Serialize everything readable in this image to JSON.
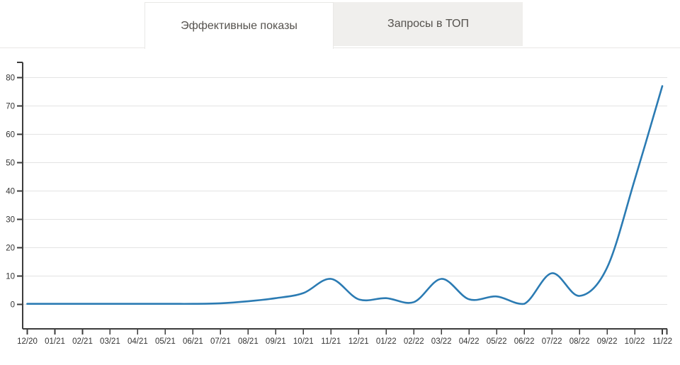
{
  "tabs": [
    {
      "label": "Эффективные показы",
      "active": true
    },
    {
      "label": "Запросы в ТОП",
      "active": false
    }
  ],
  "colors": {
    "line": "#2b7bb3",
    "grid": "#e3e3e3",
    "axis": "#3c3c3c",
    "tick_text": "#333333",
    "tab_inactive_bg": "#f0efed",
    "tab_border": "#e9e8e6",
    "tab_text": "#55524e"
  },
  "chart_data": {
    "type": "line",
    "title": "",
    "xlabel": "",
    "ylabel": "",
    "grid": true,
    "legend": false,
    "ylim": [
      0,
      80
    ],
    "yticks": [
      0,
      10,
      20,
      30,
      40,
      50,
      60,
      70,
      80
    ],
    "x": [
      "12/20",
      "01/21",
      "02/21",
      "03/21",
      "04/21",
      "05/21",
      "06/21",
      "07/21",
      "08/21",
      "09/21",
      "10/21",
      "11/21",
      "12/21",
      "01/22",
      "02/22",
      "03/22",
      "04/22",
      "05/22",
      "06/22",
      "07/22",
      "08/22",
      "09/22",
      "10/22",
      "11/22"
    ],
    "series": [
      {
        "name": "Эффективные показы",
        "values": [
          0.2,
          0.2,
          0.2,
          0.2,
          0.2,
          0.2,
          0.2,
          0.4,
          1.1,
          2.2,
          4,
          9,
          1.8,
          2.2,
          0.8,
          9,
          1.8,
          2.8,
          0.2,
          11,
          3,
          13,
          44,
          77
        ]
      }
    ]
  }
}
